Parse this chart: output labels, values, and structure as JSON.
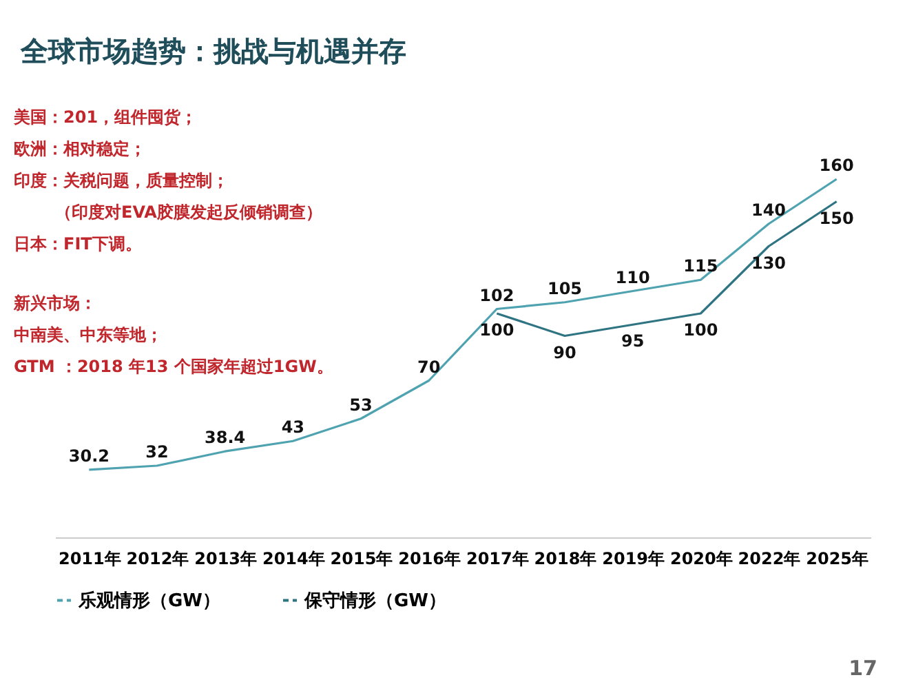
{
  "chart_data": {
    "type": "line",
    "title": "全球市场趋势：挑战与机遇并存",
    "categories": [
      "2011年",
      "2012年",
      "2013年",
      "2014年",
      "2015年",
      "2016年",
      "2017年",
      "2018年",
      "2019年",
      "2020年",
      "2022年",
      "2025年"
    ],
    "series": [
      {
        "name": "乐观情形（GW）",
        "color": "#4fa3b0",
        "values": [
          30.2,
          32,
          38.4,
          43,
          53,
          70,
          102,
          105,
          110,
          115,
          140,
          160
        ]
      },
      {
        "name": "保守情形（GW）",
        "color": "#2f7482",
        "values": [
          null,
          null,
          null,
          null,
          null,
          null,
          100,
          90,
          95,
          100,
          130,
          150
        ]
      }
    ],
    "data_labels": true,
    "legend": "bottom",
    "grid": false,
    "marker": "none",
    "line_style": "solid",
    "tick_labels": "x",
    "annotations": [
      "美国：201，组件囤货；",
      "欧洲：相对稳定；",
      "印度：关税问题，质量控制；",
      "（印度对EVA胶膜发起反倾销调查）",
      "日本：FIT下调。",
      "新兴市场：",
      "中南美、中东等地；",
      "GTM ：2018 年13 个国家年超过1GW。",
      "17"
    ]
  }
}
